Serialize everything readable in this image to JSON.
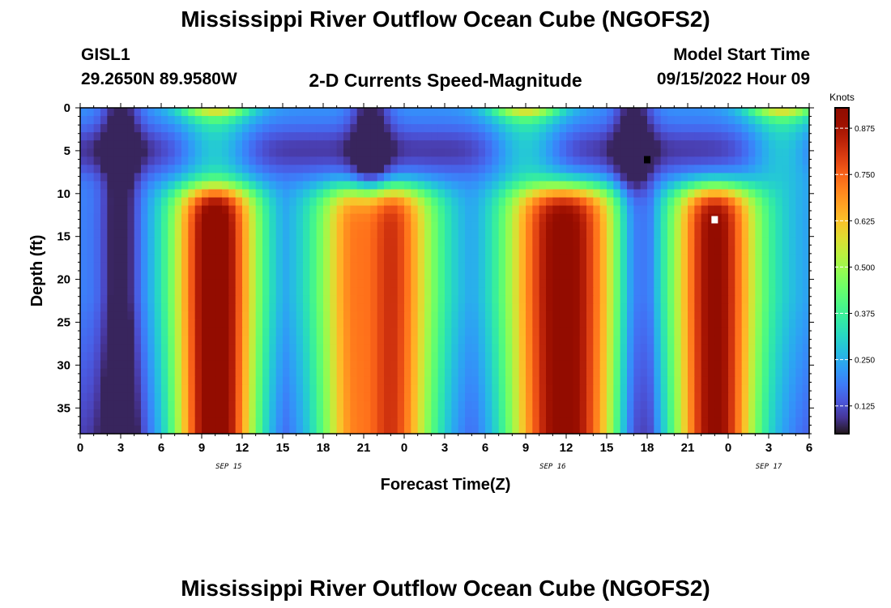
{
  "header": {
    "title": "Mississippi River Outflow Ocean Cube (NGOFS2)",
    "station": "GISL1",
    "coords": "29.2650N  89.9580W",
    "subtitle": "2-D Currents Speed-Magnitude",
    "model_label": "Model Start Time",
    "model_time": "09/15/2022 Hour 09"
  },
  "footer": {
    "title": "Mississippi River Outflow Ocean Cube (NGOFS2)"
  },
  "chart_data": {
    "type": "heatmap",
    "xlabel": "Forecast Time(Z)",
    "ylabel": "Depth (ft)",
    "x_ticks": [
      "0",
      "3",
      "6",
      "9",
      "12",
      "15",
      "18",
      "21",
      "0",
      "3",
      "6",
      "9",
      "12",
      "15",
      "18",
      "21",
      "0",
      "3",
      "6"
    ],
    "x_range_hours": [
      0,
      54
    ],
    "date_labels": [
      {
        "label": "SEP 15",
        "hour": 11
      },
      {
        "label": "SEP 16",
        "hour": 35
      },
      {
        "label": "SEP 17",
        "hour": 51
      }
    ],
    "y_ticks": [
      0,
      5,
      10,
      15,
      20,
      25,
      30,
      35
    ],
    "y_range": [
      0,
      38
    ],
    "y_inverted": true,
    "colorbar": {
      "unit": "Knots",
      "min": 0.05,
      "max": 0.93,
      "ticks": [
        0.125,
        0.25,
        0.375,
        0.5,
        0.625,
        0.75,
        0.875
      ],
      "tick_labels": [
        "0.125",
        "0.250",
        "0.375",
        "0.500",
        "0.625",
        "0.750",
        "0.875"
      ],
      "colormap": "turbo"
    },
    "surface_peaks_hours": [
      10,
      33,
      52
    ],
    "deep_peaks_hours": [
      10,
      22,
      36,
      47
    ],
    "slack_hours": [
      3,
      21.5,
      41
    ],
    "markers": [
      {
        "type": "min",
        "hour": 42,
        "depth": 6,
        "color": "#000000"
      },
      {
        "type": "max",
        "hour": 47,
        "depth": 13,
        "color": "#ffffff"
      }
    ]
  }
}
